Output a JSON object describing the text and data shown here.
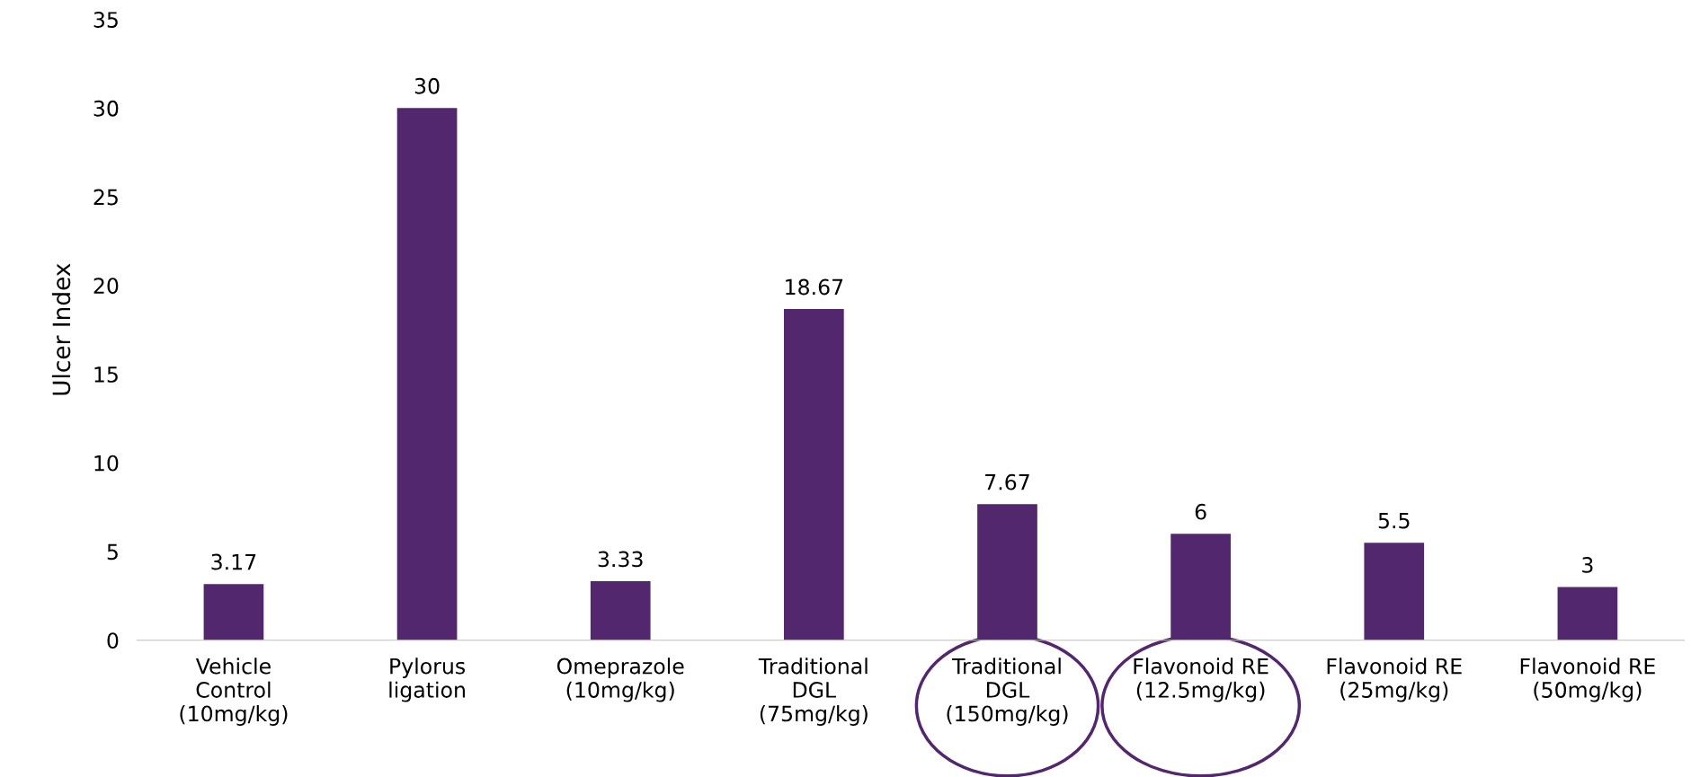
{
  "chart_data": {
    "type": "bar",
    "ylabel": "Ulcer Index",
    "categories": [
      "Vehicle\nControl\n(10mg/kg)",
      "Pylorus\nligation",
      "Omeprazole\n(10mg/kg)",
      "Traditional\nDGL\n(75mg/kg)",
      "Traditional\nDGL\n(150mg/kg)",
      "Flavonoid RE\n(12.5mg/kg)",
      "Flavonoid RE\n(25mg/kg)",
      "Flavonoid RE\n(50mg/kg)"
    ],
    "values": [
      3.17,
      30,
      3.33,
      18.67,
      7.67,
      6,
      5.5,
      3
    ],
    "color": "#52276e",
    "ylim": [
      0,
      35
    ],
    "yticks": [
      0,
      5,
      10,
      15,
      20,
      25,
      30,
      35
    ],
    "grid": false,
    "data_labels": true
  }
}
